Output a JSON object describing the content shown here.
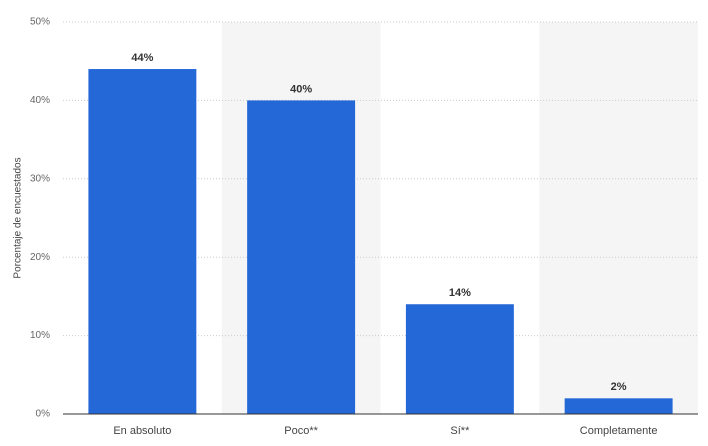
{
  "chart_data": {
    "type": "bar",
    "y_label": "Porcentaje de encuestados",
    "categories": [
      "En absoluto",
      "Poco**",
      "Sí**",
      "Completamente"
    ],
    "values": [
      44,
      40,
      14,
      2
    ],
    "value_labels": [
      "44%",
      "40%",
      "14%",
      "2%"
    ],
    "color": "#2467d6",
    "ylim": [
      0,
      50
    ],
    "yticks": [
      {
        "value": 0,
        "label": "0%"
      },
      {
        "value": 10,
        "label": "10%"
      },
      {
        "value": 20,
        "label": "20%"
      },
      {
        "value": 30,
        "label": "30%"
      },
      {
        "value": 40,
        "label": "40%"
      },
      {
        "value": 50,
        "label": "50%"
      }
    ],
    "grid": true
  }
}
